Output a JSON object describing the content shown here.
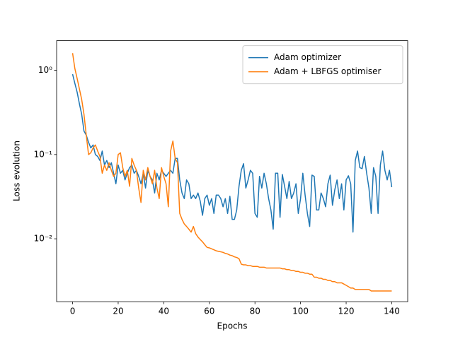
{
  "chart_data": {
    "type": "line",
    "xlabel": "Epochs",
    "ylabel": "Loss evolution",
    "x": [
      0,
      1,
      2,
      3,
      4,
      5,
      6,
      7,
      8,
      9,
      10,
      11,
      12,
      13,
      14,
      15,
      16,
      17,
      18,
      19,
      20,
      21,
      22,
      23,
      24,
      25,
      26,
      27,
      28,
      29,
      30,
      31,
      32,
      33,
      34,
      35,
      36,
      37,
      38,
      39,
      40,
      41,
      42,
      43,
      44,
      45,
      46,
      47,
      48,
      49,
      50,
      51,
      52,
      53,
      54,
      55,
      56,
      57,
      58,
      59,
      60,
      61,
      62,
      63,
      64,
      65,
      66,
      67,
      68,
      69,
      70,
      71,
      72,
      73,
      74,
      75,
      76,
      77,
      78,
      79,
      80,
      81,
      82,
      83,
      84,
      85,
      86,
      87,
      88,
      89,
      90,
      91,
      92,
      93,
      94,
      95,
      96,
      97,
      98,
      99,
      100,
      101,
      102,
      103,
      104,
      105,
      106,
      107,
      108,
      109,
      110,
      111,
      112,
      113,
      114,
      115,
      116,
      117,
      118,
      119,
      120,
      121,
      122,
      123,
      124,
      125,
      126,
      127,
      128,
      129,
      130,
      131,
      132,
      133,
      134,
      135,
      136,
      137,
      138,
      139,
      140
    ],
    "series": [
      {
        "name": "Adam optimizer",
        "color": "#1f77b4",
        "values": [
          0.9,
          0.7,
          0.55,
          0.4,
          0.3,
          0.19,
          0.17,
          0.14,
          0.12,
          0.13,
          0.1,
          0.095,
          0.085,
          0.11,
          0.075,
          0.085,
          0.07,
          0.08,
          0.06,
          0.045,
          0.075,
          0.06,
          0.065,
          0.05,
          0.06,
          0.07,
          0.075,
          0.06,
          0.065,
          0.055,
          0.045,
          0.06,
          0.04,
          0.065,
          0.055,
          0.05,
          0.035,
          0.06,
          0.05,
          0.065,
          0.06,
          0.055,
          0.06,
          0.065,
          0.06,
          0.09,
          0.09,
          0.05,
          0.035,
          0.03,
          0.05,
          0.045,
          0.03,
          0.033,
          0.03,
          0.035,
          0.028,
          0.019,
          0.03,
          0.033,
          0.025,
          0.03,
          0.02,
          0.033,
          0.033,
          0.03,
          0.024,
          0.03,
          0.02,
          0.032,
          0.017,
          0.017,
          0.022,
          0.042,
          0.065,
          0.078,
          0.04,
          0.05,
          0.065,
          0.06,
          0.02,
          0.018,
          0.055,
          0.04,
          0.06,
          0.045,
          0.03,
          0.022,
          0.013,
          0.06,
          0.06,
          0.018,
          0.058,
          0.042,
          0.03,
          0.048,
          0.03,
          0.035,
          0.045,
          0.02,
          0.03,
          0.06,
          0.033,
          0.02,
          0.014,
          0.057,
          0.055,
          0.022,
          0.022,
          0.035,
          0.03,
          0.024,
          0.045,
          0.057,
          0.025,
          0.038,
          0.05,
          0.03,
          0.045,
          0.022,
          0.05,
          0.056,
          0.045,
          0.012,
          0.085,
          0.11,
          0.07,
          0.068,
          0.095,
          0.06,
          0.04,
          0.02,
          0.07,
          0.055,
          0.02,
          0.075,
          0.11,
          0.065,
          0.05,
          0.065,
          0.041
        ]
      },
      {
        "name": "Adam + LBFGS optimiser",
        "color": "#ff7f0e",
        "values": [
          1.6,
          1.05,
          0.8,
          0.6,
          0.45,
          0.3,
          0.17,
          0.1,
          0.105,
          0.12,
          0.13,
          0.11,
          0.095,
          0.06,
          0.075,
          0.065,
          0.08,
          0.065,
          0.055,
          0.06,
          0.1,
          0.105,
          0.07,
          0.055,
          0.065,
          0.042,
          0.09,
          0.075,
          0.065,
          0.04,
          0.027,
          0.065,
          0.05,
          0.07,
          0.055,
          0.045,
          0.065,
          0.04,
          0.03,
          0.07,
          0.055,
          0.045,
          0.024,
          0.11,
          0.145,
          0.09,
          0.08,
          0.02,
          0.017,
          0.015,
          0.014,
          0.013,
          0.012,
          0.014,
          0.0115,
          0.0105,
          0.0098,
          0.0092,
          0.0085,
          0.0079,
          0.0078,
          0.0076,
          0.0074,
          0.0072,
          0.0071,
          0.007,
          0.0069,
          0.0067,
          0.0066,
          0.0064,
          0.0063,
          0.0061,
          0.006,
          0.0058,
          0.005,
          0.0049,
          0.0049,
          0.0048,
          0.0048,
          0.0047,
          0.0047,
          0.0047,
          0.0046,
          0.0046,
          0.0046,
          0.0045,
          0.0045,
          0.0045,
          0.0045,
          0.0045,
          0.0045,
          0.0045,
          0.0044,
          0.0044,
          0.0043,
          0.0043,
          0.0042,
          0.0042,
          0.0041,
          0.0041,
          0.004,
          0.004,
          0.0039,
          0.0039,
          0.0038,
          0.0038,
          0.0035,
          0.0035,
          0.0034,
          0.0034,
          0.0033,
          0.0033,
          0.0032,
          0.0032,
          0.0031,
          0.0031,
          0.003,
          0.003,
          0.003,
          0.0029,
          0.0028,
          0.0027,
          0.0026,
          0.0026,
          0.0025,
          0.0025,
          0.0025,
          0.0025,
          0.0025,
          0.0025,
          0.0025,
          0.0024,
          0.0024,
          0.0024,
          0.0024,
          0.0024,
          0.0024,
          0.0024,
          0.0024,
          0.0024,
          0.0024
        ]
      }
    ],
    "xlim": [
      -7,
      147
    ],
    "xticks": [
      0,
      20,
      40,
      60,
      80,
      100,
      120,
      140
    ],
    "ylim": [
      0.00179,
      2.25
    ],
    "ylog": true,
    "yticks": [
      {
        "value": 1,
        "label": "10⁰"
      },
      {
        "value": 0.1,
        "label": "10⁻¹"
      },
      {
        "value": 0.01,
        "label": "10⁻²"
      }
    ],
    "legend": "upper right"
  }
}
